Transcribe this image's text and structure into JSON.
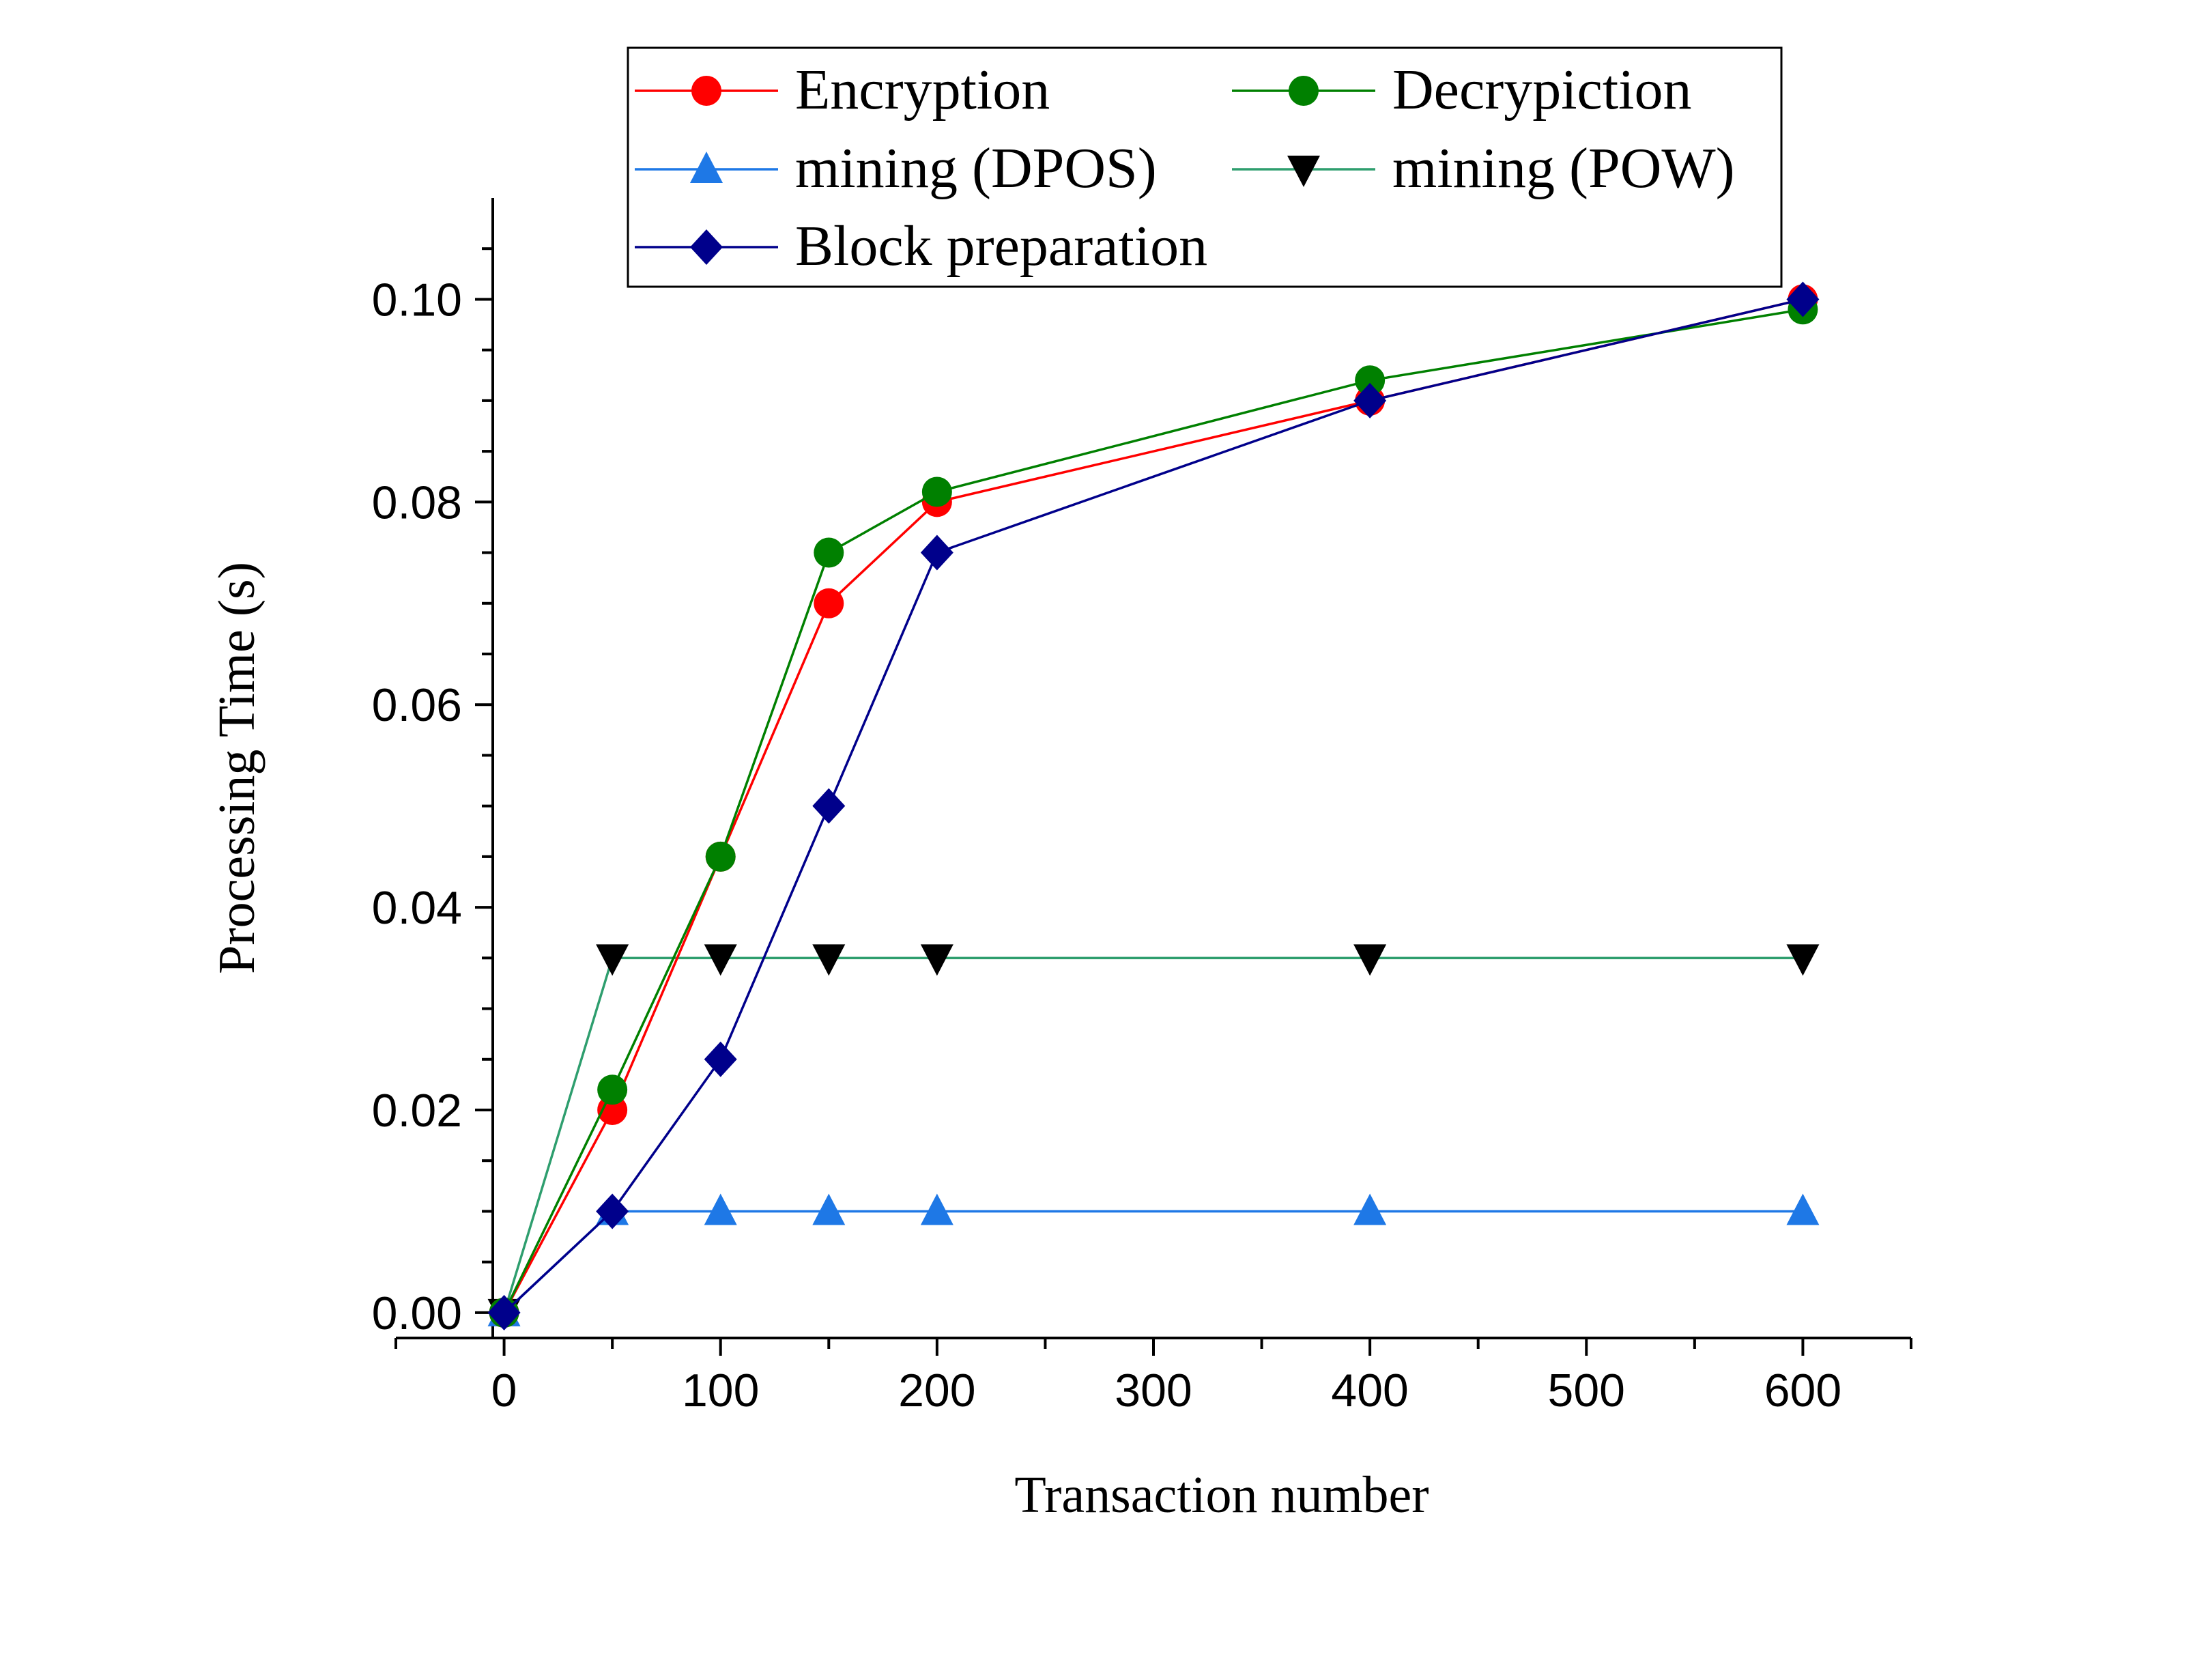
{
  "chart_data": {
    "type": "line",
    "title": "",
    "xlabel": "Transaction number",
    "ylabel": "Processing Time (s)",
    "xlim": [
      -50,
      650
    ],
    "ylim": [
      -0.0025,
      0.11
    ],
    "x_ticks": [
      0,
      100,
      200,
      300,
      400,
      500,
      600
    ],
    "x_tick_labels": [
      "0",
      "100",
      "200",
      "300",
      "400",
      "500",
      "600"
    ],
    "y_ticks": [
      0.0,
      0.02,
      0.04,
      0.06,
      0.08,
      0.1
    ],
    "y_tick_labels": [
      "0.00",
      "0.02",
      "0.04",
      "0.06",
      "0.08",
      "0.10"
    ],
    "grid": false,
    "legend_position": "top",
    "x": [
      0,
      50,
      100,
      150,
      200,
      400,
      600
    ],
    "series": [
      {
        "name": "Encryption",
        "color": "#ff0000",
        "marker": "circle",
        "values": [
          0,
          0.02,
          0.045,
          0.07,
          0.08,
          0.09,
          0.1
        ]
      },
      {
        "name": "Decrypiction",
        "color": "#008000",
        "marker": "circle",
        "values": [
          0,
          0.022,
          0.045,
          0.075,
          0.081,
          0.092,
          0.099
        ]
      },
      {
        "name": "mining (DPOS)",
        "color": "#1e78e6",
        "marker": "triangle-up",
        "values": [
          0,
          0.01,
          0.01,
          0.01,
          0.01,
          0.01,
          0.01
        ]
      },
      {
        "name": "mining (POW)",
        "color": "#2e9e6e",
        "marker_color": "#000000",
        "marker": "triangle-down",
        "values": [
          0,
          0.035,
          0.035,
          0.035,
          0.035,
          0.035,
          0.035
        ]
      },
      {
        "name": "Block preparation",
        "color": "#00008b",
        "marker": "diamond",
        "values": [
          0,
          0.01,
          0.025,
          0.05,
          0.075,
          0.09,
          0.1
        ]
      }
    ]
  }
}
